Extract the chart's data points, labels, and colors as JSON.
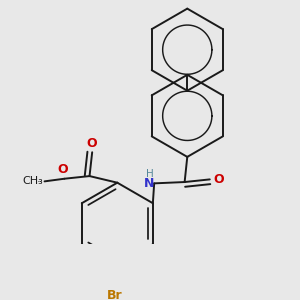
{
  "bg_color": "#e8e8e8",
  "line_color": "#1a1a1a",
  "bond_lw": 1.4,
  "double_sep": 0.018,
  "colors": {
    "N": "#3333CC",
    "O": "#CC0000",
    "Br": "#BB7700",
    "H": "#558899",
    "C": "#1a1a1a"
  },
  "font_size": 8.5,
  "ring_r": 0.155
}
